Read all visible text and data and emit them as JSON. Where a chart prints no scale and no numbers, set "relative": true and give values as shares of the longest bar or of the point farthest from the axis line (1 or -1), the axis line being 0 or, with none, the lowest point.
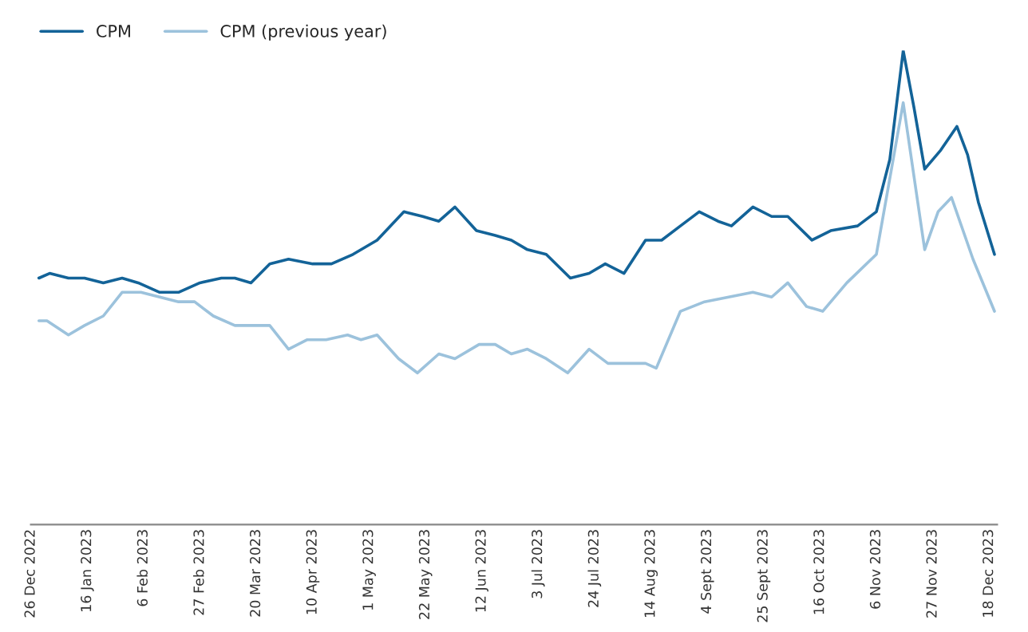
{
  "chart_data": {
    "type": "line",
    "relative": true,
    "legend": "top left",
    "grid": false,
    "marker": "none",
    "line_style": "solid",
    "xlim": [
      "2022-12-26",
      "2023-12-21"
    ],
    "xticks": [
      {
        "value": "2022-12-26",
        "label": "26 Dec 2022"
      },
      {
        "value": "2023-01-16",
        "label": "16 Jan 2023"
      },
      {
        "value": "2023-02-06",
        "label": "6 Feb 2023"
      },
      {
        "value": "2023-02-27",
        "label": "27 Feb 2023"
      },
      {
        "value": "2023-03-20",
        "label": "20 Mar 2023"
      },
      {
        "value": "2023-04-10",
        "label": "10 Apr 2023"
      },
      {
        "value": "2023-05-01",
        "label": "1 May 2023"
      },
      {
        "value": "2023-05-22",
        "label": "22 May 2023"
      },
      {
        "value": "2023-06-12",
        "label": "12 Jun 2023"
      },
      {
        "value": "2023-07-03",
        "label": "3 Jul 2023"
      },
      {
        "value": "2023-07-24",
        "label": "24 Jul 2023"
      },
      {
        "value": "2023-08-14",
        "label": "14 Aug 2023"
      },
      {
        "value": "2023-09-04",
        "label": "4 Sept 2023"
      },
      {
        "value": "2023-09-25",
        "label": "25 Sept 2023"
      },
      {
        "value": "2023-10-16",
        "label": "16 Oct 2023"
      },
      {
        "value": "2023-11-06",
        "label": "6 Nov 2023"
      },
      {
        "value": "2023-11-27",
        "label": "27 Nov 2023"
      },
      {
        "value": "2023-12-18",
        "label": "18 Dec 2023"
      }
    ],
    "series": [
      {
        "name": "CPM",
        "color": "#136398",
        "x": [
          "2022-12-29",
          "2023-01-02",
          "2023-01-09",
          "2023-01-15",
          "2023-01-22",
          "2023-01-29",
          "2023-02-04",
          "2023-02-12",
          "2023-02-19",
          "2023-02-27",
          "2023-03-07",
          "2023-03-12",
          "2023-03-18",
          "2023-03-25",
          "2023-04-01",
          "2023-04-10",
          "2023-04-17",
          "2023-04-25",
          "2023-05-04",
          "2023-05-14",
          "2023-05-21",
          "2023-05-27",
          "2023-06-02",
          "2023-06-10",
          "2023-06-17",
          "2023-06-23",
          "2023-06-29",
          "2023-07-06",
          "2023-07-15",
          "2023-07-22",
          "2023-07-28",
          "2023-08-04",
          "2023-08-12",
          "2023-08-18",
          "2023-08-25",
          "2023-09-01",
          "2023-09-08",
          "2023-09-13",
          "2023-09-21",
          "2023-09-28",
          "2023-10-04",
          "2023-10-13",
          "2023-10-20",
          "2023-10-30",
          "2023-11-06",
          "2023-11-11",
          "2023-11-16",
          "2023-11-20",
          "2023-11-24",
          "2023-11-30",
          "2023-12-06",
          "2023-12-10",
          "2023-12-14",
          "2023-12-20"
        ],
        "values": [
          0.52,
          0.53,
          0.52,
          0.52,
          0.51,
          0.52,
          0.51,
          0.49,
          0.49,
          0.51,
          0.52,
          0.52,
          0.51,
          0.55,
          0.56,
          0.55,
          0.55,
          0.57,
          0.6,
          0.66,
          0.65,
          0.64,
          0.67,
          0.62,
          0.61,
          0.6,
          0.58,
          0.57,
          0.52,
          0.53,
          0.55,
          0.53,
          0.6,
          0.6,
          0.63,
          0.66,
          0.64,
          0.63,
          0.67,
          0.65,
          0.65,
          0.6,
          0.62,
          0.63,
          0.66,
          0.77,
          1.0,
          0.88,
          0.75,
          0.79,
          0.84,
          0.78,
          0.68,
          0.57
        ]
      },
      {
        "name": "CPM (previous year)",
        "color": "#9cc2dc",
        "x": [
          "2022-12-29",
          "2023-01-01",
          "2023-01-09",
          "2023-01-15",
          "2023-01-22",
          "2023-01-29",
          "2023-02-05",
          "2023-02-12",
          "2023-02-19",
          "2023-02-25",
          "2023-03-04",
          "2023-03-12",
          "2023-03-18",
          "2023-03-25",
          "2023-04-01",
          "2023-04-08",
          "2023-04-15",
          "2023-04-23",
          "2023-04-28",
          "2023-05-04",
          "2023-05-12",
          "2023-05-19",
          "2023-05-27",
          "2023-06-02",
          "2023-06-11",
          "2023-06-17",
          "2023-06-23",
          "2023-06-29",
          "2023-07-06",
          "2023-07-14",
          "2023-07-22",
          "2023-07-29",
          "2023-08-12",
          "2023-08-16",
          "2023-08-25",
          "2023-09-03",
          "2023-09-12",
          "2023-09-21",
          "2023-09-28",
          "2023-10-04",
          "2023-10-11",
          "2023-10-17",
          "2023-10-26",
          "2023-11-06",
          "2023-11-16",
          "2023-11-24",
          "2023-11-29",
          "2023-12-04",
          "2023-12-12",
          "2023-12-20"
        ],
        "values": [
          0.43,
          0.43,
          0.4,
          0.42,
          0.44,
          0.49,
          0.49,
          0.48,
          0.47,
          0.47,
          0.44,
          0.42,
          0.42,
          0.42,
          0.37,
          0.39,
          0.39,
          0.4,
          0.39,
          0.4,
          0.35,
          0.32,
          0.36,
          0.35,
          0.38,
          0.38,
          0.36,
          0.37,
          0.35,
          0.32,
          0.37,
          0.34,
          0.34,
          0.33,
          0.45,
          0.47,
          0.48,
          0.49,
          0.48,
          0.51,
          0.46,
          0.45,
          0.51,
          0.57,
          0.89,
          0.58,
          0.66,
          0.69,
          0.56,
          0.45
        ]
      }
    ]
  }
}
